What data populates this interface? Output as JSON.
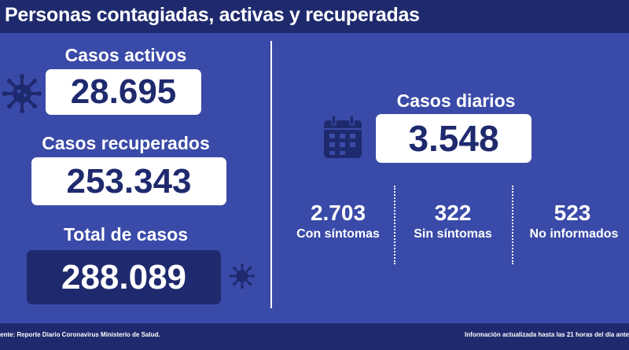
{
  "header": {
    "title": "Personas contagiadas, activas y recuperadas"
  },
  "left": {
    "active_label": "Casos activos",
    "active_value": "28.695",
    "recovered_label": "Casos recuperados",
    "recovered_value": "253.343",
    "total_label": "Total de casos",
    "total_value": "288.089"
  },
  "right": {
    "daily_label": "Casos diarios",
    "daily_value": "3.548",
    "breakdown": [
      {
        "value": "2.703",
        "label": "Con síntomas"
      },
      {
        "value": "322",
        "label": "Sin síntomas"
      },
      {
        "value": "523",
        "label": "No informados"
      }
    ]
  },
  "footer": {
    "source": "ente: Reporte Diario Coronavirus Ministerio de Salud.",
    "updated": "Información actualizada hasta las 21 horas  del día ante"
  },
  "icons": {
    "virus_large": "virus-icon",
    "virus_small": "virus-icon",
    "calendar": "calendar-icon"
  },
  "colors": {
    "background": "#3a4aa8",
    "header": "#1f2a6e",
    "box_text": "#1f2a6e",
    "icon": "#1f2a6e"
  }
}
